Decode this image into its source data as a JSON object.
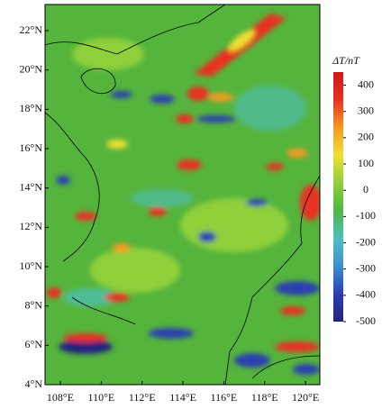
{
  "map": {
    "xlim": [
      107.25,
      120.7
    ],
    "ylim": [
      4,
      23.33
    ],
    "xticks": [
      {
        "value": 108,
        "label": "108°E"
      },
      {
        "value": 110,
        "label": "110°E"
      },
      {
        "value": 112,
        "label": "112°E"
      },
      {
        "value": 114,
        "label": "114°E"
      },
      {
        "value": 116,
        "label": "116°E"
      },
      {
        "value": 118,
        "label": "118°E"
      },
      {
        "value": 120,
        "label": "120°E"
      }
    ],
    "yticks": [
      {
        "value": 4,
        "label": "4°N"
      },
      {
        "value": 6,
        "label": "6°N"
      },
      {
        "value": 8,
        "label": "8°N"
      },
      {
        "value": 10,
        "label": "10°N"
      },
      {
        "value": 12,
        "label": "12°N"
      },
      {
        "value": 14,
        "label": "14°N"
      },
      {
        "value": 16,
        "label": "16°N"
      },
      {
        "value": 18,
        "label": "18°N"
      },
      {
        "value": 20,
        "label": "20°N"
      },
      {
        "value": 22,
        "label": "22°N"
      }
    ],
    "colorbar": {
      "title": "ΔT/nT",
      "lim": [
        -500,
        450
      ],
      "ticks": [
        400,
        300,
        200,
        100,
        0,
        -100,
        -200,
        -300,
        -400,
        -500
      ],
      "colors": [
        "#23237e",
        "#2a3fb0",
        "#3d8fd0",
        "#4cc0c0",
        "#4db840",
        "#8fd03a",
        "#f0e030",
        "#f59a20",
        "#e83020",
        "#d01818"
      ]
    }
  }
}
